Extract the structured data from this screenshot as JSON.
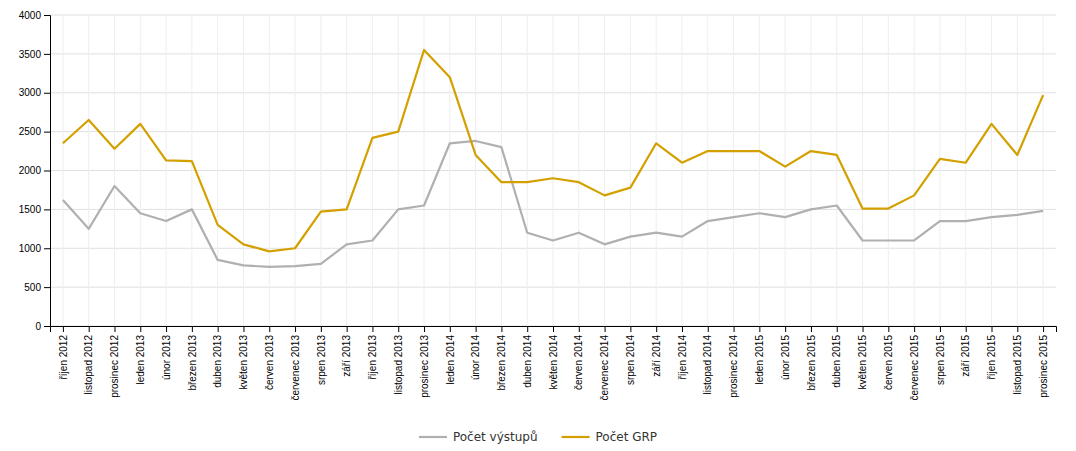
{
  "chart_data": {
    "type": "line",
    "categories": [
      "říjen 2012",
      "listopad 2012",
      "prosinec 2012",
      "leden 2013",
      "únor 2013",
      "březen 2013",
      "duben 2013",
      "květen 2013",
      "červen 2013",
      "červenec 2013",
      "srpen 2013",
      "září 2013",
      "říjen 2013",
      "listopad 2013",
      "prosinec 2013",
      "leden 2014",
      "únor 2014",
      "březen 2014",
      "duben 2014",
      "květen 2014",
      "červen 2014",
      "červenec 2014",
      "srpen 2014",
      "září 2014",
      "říjen 2014",
      "listopad 2014",
      "prosinec 2014",
      "leden 2015",
      "únor 2015",
      "březen 2015",
      "duben 2015",
      "květen 2015",
      "červen 2015",
      "červenec 2015",
      "srpen 2015",
      "září 2015",
      "říjen 2015",
      "listopad 2015",
      "prosinec 2015"
    ],
    "series": [
      {
        "name": "Počet výstupů",
        "color": "#b0b0b0",
        "values": [
          1620,
          1250,
          1800,
          1450,
          1350,
          1500,
          850,
          780,
          760,
          770,
          800,
          1050,
          1100,
          1500,
          1550,
          2350,
          2380,
          2300,
          1200,
          1100,
          1200,
          1050,
          1150,
          1200,
          1150,
          1350,
          1400,
          1450,
          1400,
          1500,
          1550,
          1100,
          1100,
          1100,
          1350,
          1350,
          1400,
          1430,
          1480
        ]
      },
      {
        "name": "Počet GRP",
        "color": "#d4a000",
        "values": [
          2350,
          2650,
          2280,
          2600,
          2130,
          2120,
          1300,
          1050,
          960,
          1000,
          1470,
          1500,
          2420,
          2500,
          3550,
          3200,
          2200,
          1850,
          1850,
          1900,
          1850,
          1680,
          1780,
          2350,
          2100,
          2250,
          2250,
          2250,
          2050,
          2250,
          2200,
          1510,
          1510,
          1680,
          2150,
          2100,
          2600,
          2200,
          2970
        ]
      }
    ],
    "ylim": [
      0,
      4000
    ],
    "yticks": [
      0,
      500,
      1000,
      1500,
      2000,
      2500,
      3000,
      3500,
      4000
    ],
    "grid": true,
    "legend": "bottom"
  }
}
